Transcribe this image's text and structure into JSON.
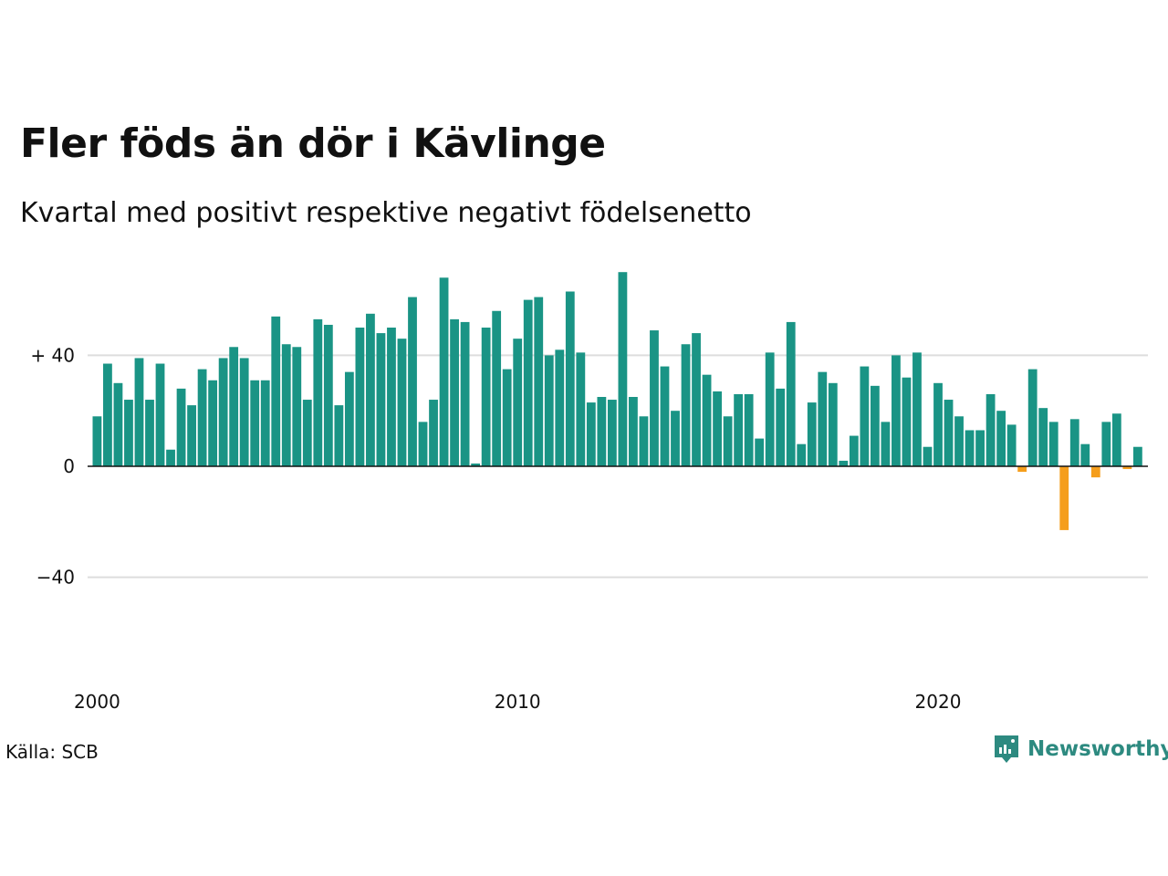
{
  "brand": {
    "name": "Newsworthy",
    "color": "#2d8a80"
  },
  "source": "Källa: SCB",
  "chart_data": {
    "type": "bar",
    "title": "Fler föds än dör i Kävlinge",
    "subtitle": "Kvartal med positivt respektive negativt födelsenetto",
    "xlabel": "",
    "ylabel": "",
    "x_ticks": [
      "2000",
      "2010",
      "2020"
    ],
    "y_ticks": [
      {
        "value": 40,
        "label": "+ 40"
      },
      {
        "value": 0,
        "label": "0"
      },
      {
        "value": -40,
        "label": "−40"
      }
    ],
    "ylim": [
      -65,
      70
    ],
    "grid": true,
    "positive_color": "#1a9485",
    "negative_color": "#f59e1c",
    "series": [
      {
        "values": [
          18,
          37,
          30,
          24,
          39,
          24,
          37,
          6,
          28,
          22,
          35,
          31,
          39,
          43,
          39,
          31,
          31,
          54,
          44,
          43,
          24,
          53,
          51,
          22,
          34,
          50,
          55,
          48,
          50,
          46,
          61,
          16,
          24,
          68,
          53,
          52,
          1,
          50,
          56,
          35,
          46,
          60,
          61,
          40,
          42,
          63,
          41,
          23,
          25,
          24,
          70,
          25,
          18,
          49,
          36,
          20,
          44,
          48,
          33,
          27,
          18,
          26,
          26,
          10,
          41,
          28,
          52,
          8,
          23,
          34,
          30,
          2,
          11,
          36,
          29,
          16,
          40,
          32,
          41,
          7,
          30,
          24,
          18,
          13,
          13,
          26,
          20,
          15,
          -2,
          35,
          21,
          16,
          -23,
          17,
          8,
          -4,
          16,
          19,
          -1,
          7
        ]
      }
    ]
  }
}
